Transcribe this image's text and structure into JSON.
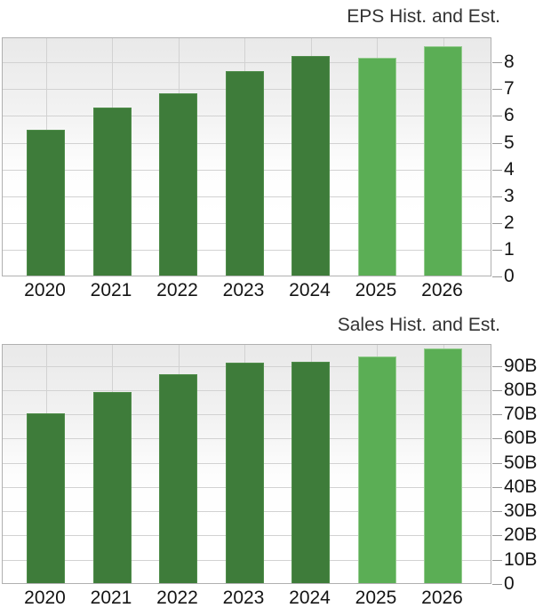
{
  "page": {
    "background": "#ffffff"
  },
  "colors": {
    "historical_bar_fill": "#3e7c3a",
    "historical_bar_edge": "#4f8d4a",
    "estimate_bar_fill": "#5bae55",
    "estimate_bar_edge": "#94cc8e",
    "gridline": "#d2d2d2",
    "plot_border": "#b0b0b0",
    "text": "#141414"
  },
  "chart_data": [
    {
      "type": "bar",
      "title": "EPS Hist. and Est.",
      "categories": [
        "2020",
        "2021",
        "2022",
        "2023",
        "2024",
        "2025",
        "2026"
      ],
      "series": [
        {
          "name": "EPS",
          "values": [
            5.45,
            6.28,
            6.82,
            7.63,
            8.2,
            8.14,
            8.57
          ]
        }
      ],
      "bar_kinds": [
        "historical",
        "historical",
        "historical",
        "historical",
        "historical",
        "estimate",
        "estimate"
      ],
      "xlabel": "",
      "ylabel": "",
      "ylim": [
        0,
        8.94
      ],
      "yticks": [
        {
          "value": 0,
          "label": "0"
        },
        {
          "value": 1,
          "label": "1"
        },
        {
          "value": 2,
          "label": "2"
        },
        {
          "value": 3,
          "label": "3"
        },
        {
          "value": 4,
          "label": "4"
        },
        {
          "value": 5,
          "label": "5"
        },
        {
          "value": 6,
          "label": "6"
        },
        {
          "value": 7,
          "label": "7"
        },
        {
          "value": 8,
          "label": "8"
        }
      ],
      "ytick_side": "right",
      "grid": true,
      "legend_position": "none"
    },
    {
      "type": "bar",
      "title": "Sales Hist. and Est.",
      "categories": [
        "2020",
        "2021",
        "2022",
        "2023",
        "2024",
        "2025",
        "2026"
      ],
      "series": [
        {
          "name": "Sales (B)",
          "values": [
            69.9,
            79.0,
            86.2,
            90.9,
            91.3,
            93.4,
            96.8
          ]
        }
      ],
      "bar_kinds": [
        "historical",
        "historical",
        "historical",
        "historical",
        "historical",
        "estimate",
        "estimate"
      ],
      "xlabel": "",
      "ylabel": "",
      "ylim": [
        0,
        99
      ],
      "yticks": [
        {
          "value": 0,
          "label": "0"
        },
        {
          "value": 10,
          "label": "10B"
        },
        {
          "value": 20,
          "label": "20B"
        },
        {
          "value": 30,
          "label": "30B"
        },
        {
          "value": 40,
          "label": "40B"
        },
        {
          "value": 50,
          "label": "50B"
        },
        {
          "value": 60,
          "label": "60B"
        },
        {
          "value": 70,
          "label": "70B"
        },
        {
          "value": 80,
          "label": "80B"
        },
        {
          "value": 90,
          "label": "90B"
        }
      ],
      "ytick_side": "right",
      "grid": true,
      "legend_position": "none"
    }
  ]
}
